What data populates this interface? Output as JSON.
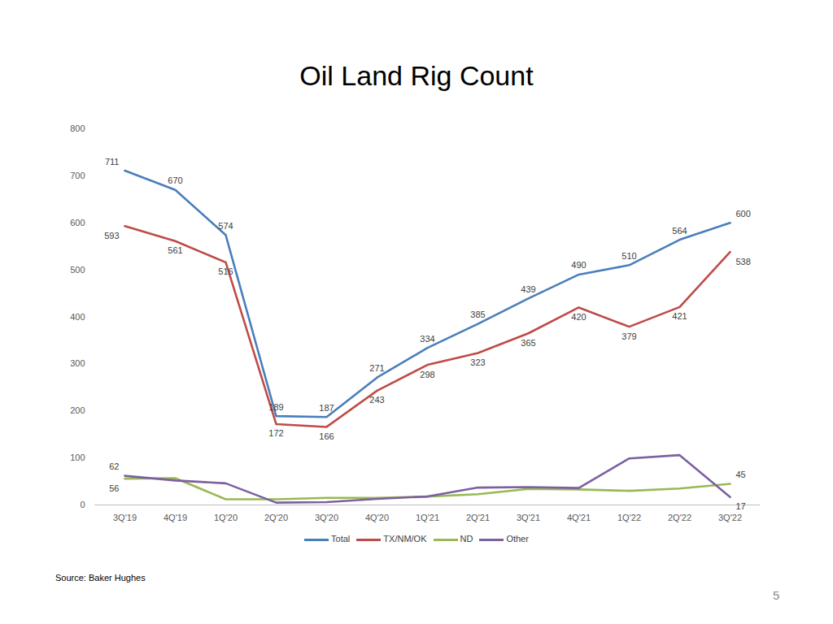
{
  "chart_data": {
    "type": "line",
    "title": "Oil Land Rig Count",
    "caption": "Source: Baker Hughes",
    "page_number": "5",
    "categories": [
      "3Q'19",
      "4Q'19",
      "1Q'20",
      "2Q'20",
      "3Q'20",
      "4Q'20",
      "1Q'21",
      "2Q'21",
      "3Q'21",
      "4Q'21",
      "1Q'22",
      "2Q'22",
      "3Q'22"
    ],
    "series": [
      {
        "name": "Total",
        "color": "#4a7ebb",
        "data_labels": true,
        "values": [
          711,
          670,
          574,
          189,
          187,
          271,
          334,
          385,
          439,
          490,
          510,
          564,
          600
        ]
      },
      {
        "name": "TX/NM/OK",
        "color": "#be4b48",
        "data_labels": true,
        "values": [
          593,
          561,
          516,
          172,
          166,
          243,
          298,
          323,
          365,
          420,
          379,
          421,
          538
        ]
      },
      {
        "name": "ND",
        "color": "#98b954",
        "values": [
          56,
          57,
          12,
          12,
          15,
          15,
          18,
          23,
          34,
          33,
          30,
          35,
          45
        ],
        "value_labels": [
          "56",
          null,
          null,
          null,
          null,
          null,
          null,
          null,
          null,
          null,
          null,
          null,
          "45"
        ]
      },
      {
        "name": "Other",
        "color": "#7d60a0",
        "values": [
          62,
          52,
          46,
          5,
          6,
          13,
          18,
          37,
          38,
          36,
          99,
          106,
          17
        ],
        "value_labels": [
          "62",
          null,
          null,
          null,
          null,
          null,
          null,
          null,
          null,
          null,
          null,
          null,
          "17"
        ]
      }
    ],
    "ylim": [
      0,
      800
    ],
    "yticks": [
      0,
      100,
      200,
      300,
      400,
      500,
      600,
      700,
      800
    ],
    "grid": false,
    "legend": "bottom"
  }
}
